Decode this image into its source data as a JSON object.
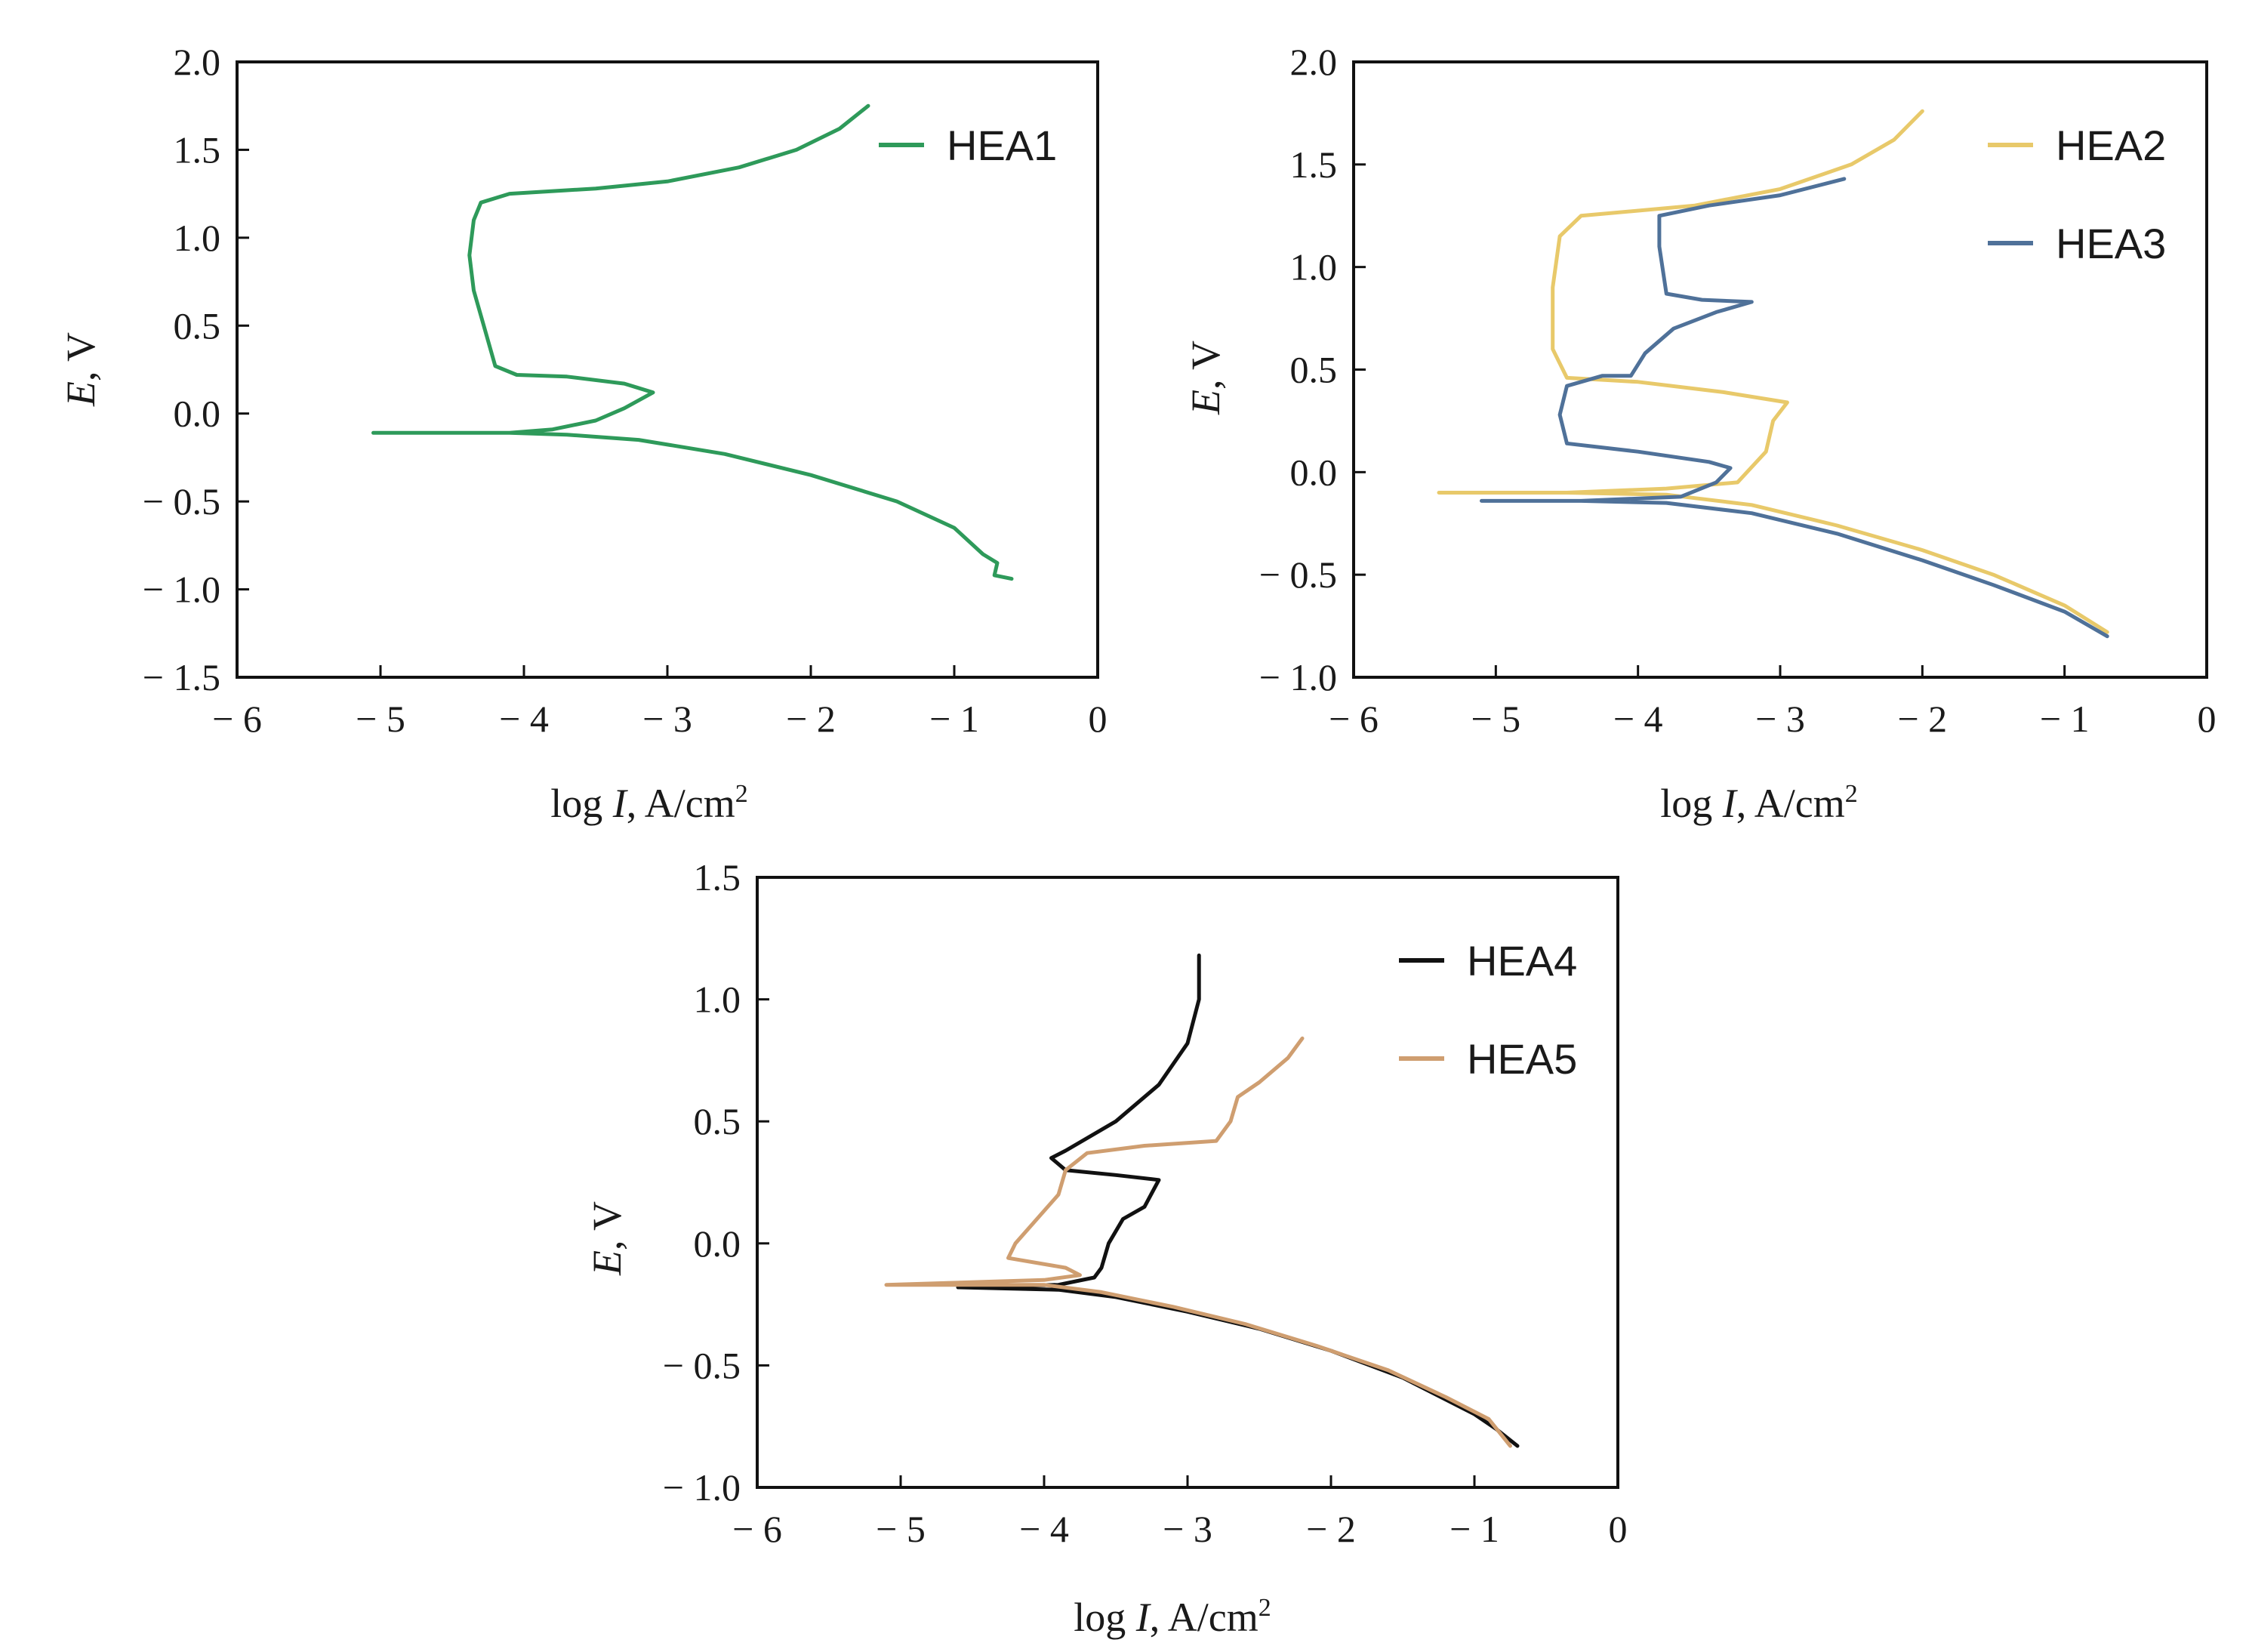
{
  "colors": {
    "HEA1": "#2e9a5a",
    "HEA2": "#e8c96a",
    "HEA3": "#4f7199",
    "HEA4": "#111111",
    "HEA5": "#cf9e70"
  },
  "chart_data": [
    {
      "type": "line",
      "xlabel_main": "log ",
      "xlabel_italic": "I",
      "xlabel_unit": ", A/cm",
      "xlabel_sup": "2",
      "ylabel_italic": "E",
      "ylabel_unit": ", V",
      "xlim": [
        -6,
        0
      ],
      "ylim": [
        -1.5,
        2.0
      ],
      "x_ticks": [
        -6,
        -5,
        -4,
        -3,
        -2,
        -1,
        0
      ],
      "x_tick_labels": [
        "− 6",
        "− 5",
        "− 4",
        "− 3",
        "− 2",
        "− 1",
        "0"
      ],
      "y_ticks": [
        -1.5,
        -1.0,
        -0.5,
        0.0,
        0.5,
        1.0,
        1.5,
        2.0
      ],
      "y_tick_labels": [
        "− 1.5",
        "− 1.0",
        "− 0.5",
        "0.0",
        "0.5",
        "1.0",
        "1.5",
        "2.0"
      ],
      "legend_position": "top-right",
      "series": [
        {
          "name": "HEA1",
          "color_key": "HEA1",
          "points": [
            [
              -0.6,
              -0.94
            ],
            [
              -0.72,
              -0.92
            ],
            [
              -0.7,
              -0.85
            ],
            [
              -0.8,
              -0.8
            ],
            [
              -1.0,
              -0.65
            ],
            [
              -1.4,
              -0.5
            ],
            [
              -2.0,
              -0.35
            ],
            [
              -2.6,
              -0.23
            ],
            [
              -3.2,
              -0.15
            ],
            [
              -3.7,
              -0.12
            ],
            [
              -4.1,
              -0.11
            ],
            [
              -5.05,
              -0.11
            ],
            [
              -4.1,
              -0.11
            ],
            [
              -3.8,
              -0.09
            ],
            [
              -3.5,
              -0.04
            ],
            [
              -3.3,
              0.03
            ],
            [
              -3.1,
              0.12
            ],
            [
              -3.3,
              0.17
            ],
            [
              -3.7,
              0.21
            ],
            [
              -4.05,
              0.22
            ],
            [
              -4.2,
              0.27
            ],
            [
              -4.28,
              0.5
            ],
            [
              -4.35,
              0.7
            ],
            [
              -4.38,
              0.9
            ],
            [
              -4.35,
              1.1
            ],
            [
              -4.3,
              1.2
            ],
            [
              -4.1,
              1.25
            ],
            [
              -3.5,
              1.28
            ],
            [
              -3.0,
              1.32
            ],
            [
              -2.5,
              1.4
            ],
            [
              -2.1,
              1.5
            ],
            [
              -1.8,
              1.62
            ],
            [
              -1.6,
              1.75
            ]
          ]
        }
      ]
    },
    {
      "type": "line",
      "xlabel_main": "log ",
      "xlabel_italic": "I",
      "xlabel_unit": ", A/cm",
      "xlabel_sup": "2",
      "ylabel_italic": "E",
      "ylabel_unit": ", V",
      "xlim": [
        -6,
        0
      ],
      "ylim": [
        -1.0,
        2.0
      ],
      "x_ticks": [
        -6,
        -5,
        -4,
        -3,
        -2,
        -1,
        0
      ],
      "x_tick_labels": [
        "− 6",
        "− 5",
        "− 4",
        "− 3",
        "− 2",
        "− 1",
        "0"
      ],
      "y_ticks": [
        -1.0,
        -0.5,
        0.0,
        0.5,
        1.0,
        1.5,
        2.0
      ],
      "y_tick_labels": [
        "− 1.0",
        "− 0.5",
        "0.0",
        "0.5",
        "1.0",
        "1.5",
        "2.0"
      ],
      "legend_position": "top-right",
      "series": [
        {
          "name": "HEA2",
          "color_key": "HEA2",
          "points": [
            [
              -0.7,
              -0.78
            ],
            [
              -1.0,
              -0.65
            ],
            [
              -1.5,
              -0.5
            ],
            [
              -2.0,
              -0.38
            ],
            [
              -2.6,
              -0.26
            ],
            [
              -3.2,
              -0.16
            ],
            [
              -3.8,
              -0.11
            ],
            [
              -4.5,
              -0.1
            ],
            [
              -5.4,
              -0.1
            ],
            [
              -4.5,
              -0.1
            ],
            [
              -3.8,
              -0.08
            ],
            [
              -3.3,
              -0.05
            ],
            [
              -3.1,
              0.1
            ],
            [
              -3.05,
              0.25
            ],
            [
              -2.95,
              0.34
            ],
            [
              -3.4,
              0.39
            ],
            [
              -4.0,
              0.44
            ],
            [
              -4.5,
              0.46
            ],
            [
              -4.6,
              0.6
            ],
            [
              -4.6,
              0.9
            ],
            [
              -4.55,
              1.15
            ],
            [
              -4.4,
              1.25
            ],
            [
              -3.6,
              1.3
            ],
            [
              -3.0,
              1.38
            ],
            [
              -2.5,
              1.5
            ],
            [
              -2.2,
              1.62
            ],
            [
              -2.0,
              1.76
            ]
          ]
        },
        {
          "name": "HEA3",
          "color_key": "HEA3",
          "points": [
            [
              -0.7,
              -0.8
            ],
            [
              -1.0,
              -0.68
            ],
            [
              -1.5,
              -0.55
            ],
            [
              -2.0,
              -0.43
            ],
            [
              -2.6,
              -0.3
            ],
            [
              -3.2,
              -0.2
            ],
            [
              -3.8,
              -0.15
            ],
            [
              -4.4,
              -0.14
            ],
            [
              -5.1,
              -0.14
            ],
            [
              -4.4,
              -0.14
            ],
            [
              -3.7,
              -0.12
            ],
            [
              -3.45,
              -0.05
            ],
            [
              -3.35,
              0.02
            ],
            [
              -3.5,
              0.05
            ],
            [
              -4.0,
              0.1
            ],
            [
              -4.5,
              0.14
            ],
            [
              -4.55,
              0.28
            ],
            [
              -4.5,
              0.42
            ],
            [
              -4.25,
              0.47
            ],
            [
              -4.05,
              0.47
            ],
            [
              -3.95,
              0.58
            ],
            [
              -3.75,
              0.7
            ],
            [
              -3.45,
              0.78
            ],
            [
              -3.2,
              0.83
            ],
            [
              -3.55,
              0.84
            ],
            [
              -3.8,
              0.87
            ],
            [
              -3.85,
              1.1
            ],
            [
              -3.85,
              1.25
            ],
            [
              -3.5,
              1.3
            ],
            [
              -3.0,
              1.35
            ],
            [
              -2.55,
              1.43
            ]
          ]
        }
      ]
    },
    {
      "type": "line",
      "xlabel_main": "log ",
      "xlabel_italic": "I",
      "xlabel_unit": ", A/cm",
      "xlabel_sup": "2",
      "ylabel_italic": "E",
      "ylabel_unit": ", V",
      "xlim": [
        -6,
        0
      ],
      "ylim": [
        -1.0,
        1.5
      ],
      "x_ticks": [
        -6,
        -5,
        -4,
        -3,
        -2,
        -1,
        0
      ],
      "x_tick_labels": [
        "− 6",
        "− 5",
        "− 4",
        "− 3",
        "− 2",
        "− 1",
        "0"
      ],
      "y_ticks": [
        -1.0,
        -0.5,
        0.0,
        0.5,
        1.0,
        1.5
      ],
      "y_tick_labels": [
        "− 1.0",
        "− 0.5",
        "0.0",
        "0.5",
        "1.0",
        "1.5"
      ],
      "legend_position": "top-right",
      "series": [
        {
          "name": "HEA4",
          "color_key": "HEA4",
          "points": [
            [
              -0.7,
              -0.83
            ],
            [
              -0.85,
              -0.76
            ],
            [
              -1.0,
              -0.7
            ],
            [
              -1.5,
              -0.55
            ],
            [
              -2.0,
              -0.44
            ],
            [
              -2.5,
              -0.35
            ],
            [
              -3.0,
              -0.28
            ],
            [
              -3.5,
              -0.22
            ],
            [
              -3.9,
              -0.19
            ],
            [
              -4.6,
              -0.18
            ],
            [
              -3.9,
              -0.17
            ],
            [
              -3.65,
              -0.14
            ],
            [
              -3.6,
              -0.1
            ],
            [
              -3.55,
              0.0
            ],
            [
              -3.45,
              0.1
            ],
            [
              -3.3,
              0.15
            ],
            [
              -3.2,
              0.26
            ],
            [
              -3.5,
              0.28
            ],
            [
              -3.85,
              0.3
            ],
            [
              -3.95,
              0.35
            ],
            [
              -3.85,
              0.38
            ],
            [
              -3.5,
              0.5
            ],
            [
              -3.2,
              0.65
            ],
            [
              -3.0,
              0.82
            ],
            [
              -2.92,
              1.0
            ],
            [
              -2.92,
              1.18
            ]
          ]
        },
        {
          "name": "HEA5",
          "color_key": "HEA5",
          "points": [
            [
              -0.75,
              -0.83
            ],
            [
              -0.9,
              -0.72
            ],
            [
              -1.2,
              -0.63
            ],
            [
              -1.6,
              -0.52
            ],
            [
              -2.1,
              -0.42
            ],
            [
              -2.6,
              -0.33
            ],
            [
              -3.1,
              -0.26
            ],
            [
              -3.6,
              -0.2
            ],
            [
              -4.0,
              -0.17
            ],
            [
              -5.1,
              -0.17
            ],
            [
              -4.0,
              -0.15
            ],
            [
              -3.75,
              -0.13
            ],
            [
              -3.85,
              -0.1
            ],
            [
              -4.25,
              -0.06
            ],
            [
              -4.2,
              0.0
            ],
            [
              -4.05,
              0.1
            ],
            [
              -3.9,
              0.2
            ],
            [
              -3.85,
              0.3
            ],
            [
              -3.7,
              0.37
            ],
            [
              -3.3,
              0.4
            ],
            [
              -2.8,
              0.42
            ],
            [
              -2.7,
              0.5
            ],
            [
              -2.65,
              0.6
            ],
            [
              -2.5,
              0.66
            ],
            [
              -2.3,
              0.76
            ],
            [
              -2.2,
              0.84
            ]
          ]
        }
      ]
    }
  ]
}
